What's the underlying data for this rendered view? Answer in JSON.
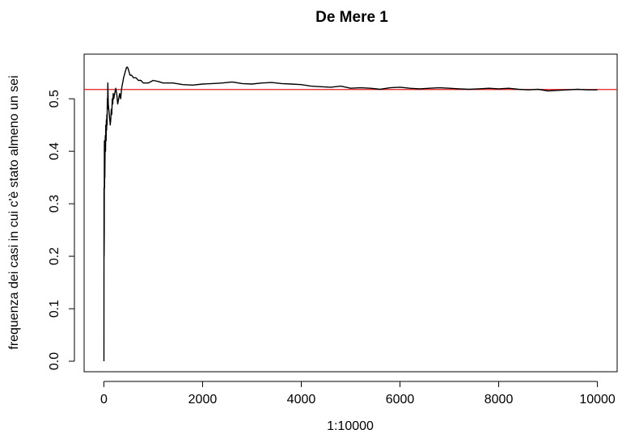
{
  "chart_data": {
    "type": "line",
    "title": "De Mere 1",
    "xlabel": "1:10000",
    "ylabel": "frequenza dei casi in cui c'è stato almeno un sei",
    "xlim": [
      -400,
      10400
    ],
    "ylim": [
      -0.02,
      0.585
    ],
    "x_ticks": [
      0,
      2000,
      4000,
      6000,
      8000,
      10000
    ],
    "x_tick_labels": [
      "0",
      "2000",
      "4000",
      "6000",
      "8000",
      "10000"
    ],
    "y_ticks": [
      0.0,
      0.1,
      0.2,
      0.3,
      0.4,
      0.5
    ],
    "y_tick_labels": [
      "0.0",
      "0.1",
      "0.2",
      "0.3",
      "0.4",
      "0.5"
    ],
    "grid": false,
    "reference_line": {
      "y": 0.5177,
      "color": "#e41a1c"
    },
    "line_color": "#000000",
    "series": [
      {
        "x": [
          1,
          3,
          5,
          8,
          10,
          12,
          15,
          18,
          20,
          25,
          30,
          35,
          40,
          45,
          50,
          55,
          60,
          65,
          70,
          75,
          80,
          90,
          100,
          110,
          120,
          130,
          140,
          150,
          160,
          170,
          180,
          190,
          200,
          220,
          240,
          260,
          280,
          300,
          320,
          340,
          360,
          380,
          400,
          430,
          460,
          480,
          500,
          530,
          560,
          600,
          650,
          700,
          750,
          800,
          900,
          1000,
          1100,
          1200,
          1400,
          1600,
          1800,
          2000,
          2200,
          2400,
          2600,
          2800,
          3000,
          3200,
          3400,
          3600,
          3800,
          4000,
          4200,
          4400,
          4600,
          4800,
          5000,
          5200,
          5400,
          5600,
          5800,
          6000,
          6200,
          6400,
          6600,
          6800,
          7000,
          7200,
          7400,
          7600,
          7800,
          8000,
          8200,
          8400,
          8600,
          8800,
          9000,
          9200,
          9400,
          9600,
          9800,
          10000
        ],
        "values": [
          0.0,
          0.33,
          0.2,
          0.25,
          0.4,
          0.42,
          0.33,
          0.39,
          0.35,
          0.4,
          0.43,
          0.4,
          0.45,
          0.42,
          0.46,
          0.44,
          0.47,
          0.45,
          0.5,
          0.48,
          0.53,
          0.49,
          0.48,
          0.47,
          0.46,
          0.45,
          0.46,
          0.48,
          0.47,
          0.5,
          0.49,
          0.51,
          0.5,
          0.51,
          0.52,
          0.51,
          0.49,
          0.5,
          0.51,
          0.5,
          0.52,
          0.53,
          0.54,
          0.55,
          0.56,
          0.56,
          0.555,
          0.545,
          0.545,
          0.54,
          0.54,
          0.535,
          0.535,
          0.53,
          0.53,
          0.535,
          0.533,
          0.53,
          0.53,
          0.527,
          0.526,
          0.528,
          0.529,
          0.53,
          0.532,
          0.529,
          0.528,
          0.53,
          0.531,
          0.529,
          0.528,
          0.527,
          0.524,
          0.523,
          0.522,
          0.524,
          0.52,
          0.521,
          0.52,
          0.518,
          0.521,
          0.522,
          0.52,
          0.519,
          0.52,
          0.521,
          0.52,
          0.519,
          0.518,
          0.519,
          0.52,
          0.519,
          0.52,
          0.518,
          0.517,
          0.518,
          0.515,
          0.516,
          0.517,
          0.518,
          0.517,
          0.517
        ]
      }
    ]
  }
}
